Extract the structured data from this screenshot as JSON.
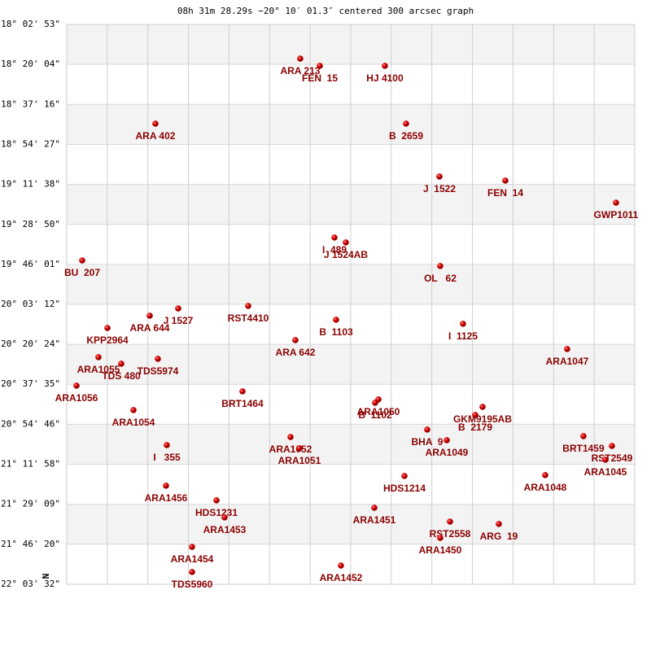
{
  "chart_data": {
    "type": "scatter",
    "title": "08h 31m 28.29s −20° 10′ 01.3″ centered 300 arcsec graph",
    "compass": "N",
    "xlim": [
      0,
      14
    ],
    "xticks": [
      1,
      2,
      3,
      4,
      5,
      6,
      7,
      8,
      9,
      10,
      11,
      12,
      13
    ],
    "ylim": [
      -22.059,
      -18.048
    ],
    "yticks": [
      {
        "value": -18.048,
        "label": "-18° 02' 53\""
      },
      {
        "value": -18.334,
        "label": "-18° 20' 04\""
      },
      {
        "value": -18.621,
        "label": "-18° 37' 16\""
      },
      {
        "value": -18.908,
        "label": "-18° 54' 27\""
      },
      {
        "value": -19.194,
        "label": "-19° 11' 38\""
      },
      {
        "value": -19.481,
        "label": "-19° 28' 50\""
      },
      {
        "value": -19.767,
        "label": "-19° 46' 01\""
      },
      {
        "value": -20.053,
        "label": "-20° 03' 12\""
      },
      {
        "value": -20.34,
        "label": "-20° 20' 24\""
      },
      {
        "value": -20.626,
        "label": "-20° 37' 35\""
      },
      {
        "value": -20.913,
        "label": "-20° 54' 46\""
      },
      {
        "value": -21.199,
        "label": "-21° 11' 58\""
      },
      {
        "value": -21.486,
        "label": "-21° 29' 09\""
      },
      {
        "value": -21.772,
        "label": "-21° 46' 20\""
      },
      {
        "value": -22.059,
        "label": "-22° 03' 32\""
      }
    ],
    "grid": true,
    "color": "#cc0000",
    "label_color": "#8b0000",
    "points": [
      {
        "label": "ARA 213",
        "x": 5.756,
        "y": -18.293
      },
      {
        "label": "FEN  15",
        "x": 6.238,
        "y": -18.345
      },
      {
        "label": "HJ 4100",
        "x": 7.842,
        "y": -18.345
      },
      {
        "label": "ARA 402",
        "x": 2.186,
        "y": -18.759
      },
      {
        "label": "B  2659",
        "x": 8.364,
        "y": -18.759
      },
      {
        "label": "J  1522",
        "x": 9.186,
        "y": -19.138
      },
      {
        "label": "FEN  14",
        "x": 10.811,
        "y": -19.167
      },
      {
        "label": "GWP1011",
        "x": 13.539,
        "y": -19.325
      },
      {
        "label": "I  489",
        "x": 6.599,
        "y": -19.575
      },
      {
        "label": "J 1524AB",
        "x": 6.88,
        "y": -19.61
      },
      {
        "label": "BU  207",
        "x": 0.381,
        "y": -19.739
      },
      {
        "label": "OL   62",
        "x": 9.206,
        "y": -19.779
      },
      {
        "label": "RST4410",
        "x": 4.473,
        "y": -20.065
      },
      {
        "label": "J 1527",
        "x": 2.748,
        "y": -20.083
      },
      {
        "label": "ARA 644",
        "x": 2.046,
        "y": -20.135
      },
      {
        "label": "B  1103",
        "x": 6.639,
        "y": -20.164
      },
      {
        "label": "I  1125",
        "x": 9.768,
        "y": -20.193
      },
      {
        "label": "KPP2964",
        "x": 1.003,
        "y": -20.223
      },
      {
        "label": "ARA 642",
        "x": 5.636,
        "y": -20.31
      },
      {
        "label": "ARA1047",
        "x": 12.335,
        "y": -20.374
      },
      {
        "label": "ARA1055",
        "x": 0.782,
        "y": -20.432
      },
      {
        "label": "TDS5974",
        "x": 2.246,
        "y": -20.444
      },
      {
        "label": "TDS 480",
        "x": 1.344,
        "y": -20.479
      },
      {
        "label": "ARA1056",
        "x": 0.241,
        "y": -20.636
      },
      {
        "label": "BRT1464",
        "x": 4.332,
        "y": -20.677
      },
      {
        "label": "ARA1050",
        "x": 7.682,
        "y": -20.735
      },
      {
        "label": "B  1102",
        "x": 7.602,
        "y": -20.759
      },
      {
        "label": "GKM9195AB",
        "x": 10.249,
        "y": -20.788
      },
      {
        "label": "B  2179",
        "x": 10.069,
        "y": -20.846
      },
      {
        "label": "ARA1054",
        "x": 1.645,
        "y": -20.811
      },
      {
        "label": "BHA  9",
        "x": 8.885,
        "y": -20.951
      },
      {
        "label": "ARA1049",
        "x": 9.367,
        "y": -21.027
      },
      {
        "label": "ARA1052",
        "x": 5.516,
        "y": -21.004
      },
      {
        "label": "ARA1051",
        "x": 5.736,
        "y": -21.085
      },
      {
        "label": "I   355",
        "x": 2.467,
        "y": -21.062
      },
      {
        "label": "BRT1459",
        "x": 12.736,
        "y": -20.998
      },
      {
        "label": "RST2549",
        "x": 13.438,
        "y": -21.068
      },
      {
        "label": "ARA1045",
        "x": 13.278,
        "y": -21.167
      },
      {
        "label": "HDS1214",
        "x": 8.324,
        "y": -21.283
      },
      {
        "label": "ARA1048",
        "x": 11.794,
        "y": -21.277
      },
      {
        "label": "ARA1456",
        "x": 2.447,
        "y": -21.353
      },
      {
        "label": "HDS1231",
        "x": 3.691,
        "y": -21.458
      },
      {
        "label": "ARA1453",
        "x": 3.891,
        "y": -21.58
      },
      {
        "label": "ARA1451",
        "x": 7.582,
        "y": -21.511
      },
      {
        "label": "RST2558",
        "x": 9.447,
        "y": -21.61
      },
      {
        "label": "ARA1450",
        "x": 9.206,
        "y": -21.727
      },
      {
        "label": "ARG  19",
        "x": 10.65,
        "y": -21.627
      },
      {
        "label": "ARA1454",
        "x": 3.089,
        "y": -21.791
      },
      {
        "label": "TDS5960",
        "x": 3.089,
        "y": -21.971
      },
      {
        "label": "ARA1452",
        "x": 6.759,
        "y": -21.925
      }
    ]
  }
}
